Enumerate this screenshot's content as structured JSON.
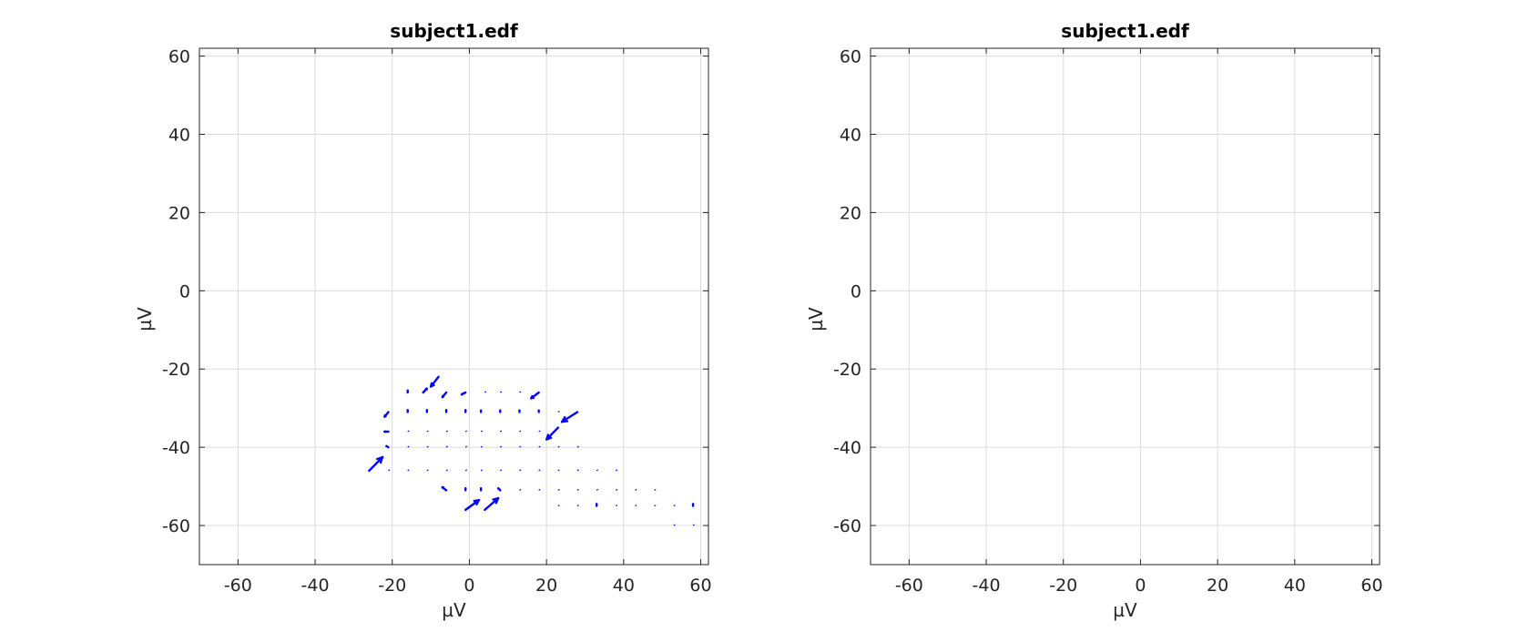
{
  "figure": {
    "background": "#ffffff",
    "axis_color": "#262626",
    "grid_color": "#dcdcdc",
    "arrow_color": "#0000ff"
  },
  "chart_data": [
    {
      "type": "quiver",
      "title": "subject1.edf",
      "xlabel": "µV",
      "ylabel": "µV",
      "xlim": [
        -70,
        62
      ],
      "ylim": [
        -70,
        62
      ],
      "xticks": [
        -60,
        -40,
        -20,
        0,
        20,
        40,
        60
      ],
      "yticks": [
        60,
        40,
        20,
        0,
        -20,
        -40,
        -60
      ],
      "xticklabels": [
        "-60",
        "-40",
        "-20",
        "0",
        "20",
        "40",
        "60"
      ],
      "yticklabels": [
        "60",
        "40",
        "20",
        "0",
        "-20",
        "-40",
        "-60"
      ],
      "grid": true,
      "series": [
        {
          "color": "#0000ff",
          "vectors": [
            [
              -16,
              -26,
              0,
              0.5
            ],
            [
              -12,
              -26,
              1,
              1
            ],
            [
              -8,
              -22,
              -2,
              -2.5
            ],
            [
              -6,
              -26,
              -1,
              -1.2
            ],
            [
              -1,
              -26,
              -1,
              -0.5
            ],
            [
              4,
              -26,
              0,
              0
            ],
            [
              8,
              -26,
              0,
              0
            ],
            [
              13,
              -26,
              0,
              0
            ],
            [
              18,
              -26,
              -2,
              -1.5
            ],
            [
              -21,
              -31,
              -1,
              -1.2
            ],
            [
              -16,
              -31,
              0,
              0.5
            ],
            [
              -11,
              -31,
              0,
              0.5
            ],
            [
              -6,
              -31,
              0,
              0.5
            ],
            [
              -1,
              -31,
              0,
              0.5
            ],
            [
              3,
              -31,
              0,
              0.4
            ],
            [
              8,
              -31,
              0,
              0.4
            ],
            [
              13,
              -31,
              0,
              0.4
            ],
            [
              18,
              -31,
              0,
              0.4
            ],
            [
              23,
              -31,
              0,
              0.3
            ],
            [
              28,
              -31,
              -4,
              -2.5
            ],
            [
              -21,
              -36,
              -1,
              0
            ],
            [
              -16,
              -36,
              0,
              0.3
            ],
            [
              -11,
              -36,
              0,
              0.3
            ],
            [
              -6,
              -36,
              0,
              0.3
            ],
            [
              -1,
              -36,
              0,
              0.3
            ],
            [
              3,
              -36,
              0,
              0.3
            ],
            [
              8,
              -36,
              0,
              0.3
            ],
            [
              13,
              -36,
              0,
              0.3
            ],
            [
              18,
              -36,
              0,
              0.3
            ],
            [
              23,
              -35,
              -3,
              -3
            ],
            [
              -21,
              -40,
              -0.5,
              0.3
            ],
            [
              -16,
              -40,
              0,
              0.3
            ],
            [
              -11,
              -40,
              0,
              0.2
            ],
            [
              -6,
              -40,
              0,
              0.2
            ],
            [
              -1,
              -40,
              0,
              0.2
            ],
            [
              3,
              -40,
              0,
              0.2
            ],
            [
              8,
              -40,
              0,
              0.2
            ],
            [
              13,
              -40,
              0,
              0.2
            ],
            [
              18,
              -40,
              0,
              0.2
            ],
            [
              23,
              -40,
              0,
              0.2
            ],
            [
              28,
              -40,
              0,
              0.2
            ],
            [
              -26,
              -46,
              3.5,
              3.5
            ],
            [
              -21,
              -46,
              0,
              0.3
            ],
            [
              -16,
              -46,
              0,
              0.3
            ],
            [
              -11,
              -46,
              0,
              0.3
            ],
            [
              -6,
              -46,
              0,
              0.2
            ],
            [
              -1,
              -46,
              0,
              0.2
            ],
            [
              3,
              -46,
              0,
              0.2
            ],
            [
              8,
              -46,
              0,
              0.2
            ],
            [
              13,
              -46,
              0,
              0.2
            ],
            [
              18,
              -46,
              0,
              0.2
            ],
            [
              23,
              -46,
              0,
              0.2
            ],
            [
              28,
              -46,
              0,
              0.2
            ],
            [
              33,
              -46,
              0,
              0.2
            ],
            [
              38,
              -46,
              0,
              0.2
            ],
            [
              -6,
              -51,
              -1,
              0.8
            ],
            [
              -1,
              -51,
              0,
              0.5
            ],
            [
              3,
              -51,
              0,
              0.5
            ],
            [
              8,
              -51,
              -0.5,
              0.5
            ],
            [
              13,
              -51,
              0,
              0.3
            ],
            [
              18,
              -51,
              0,
              0.3
            ],
            [
              23,
              -51,
              0,
              0.3
            ],
            [
              28,
              -51,
              0,
              0.3
            ],
            [
              33,
              -51,
              0,
              0.3
            ],
            [
              38,
              -51,
              0,
              0.3
            ],
            [
              43,
              -51,
              0,
              0.3
            ],
            [
              48,
              -51,
              0,
              0.3
            ],
            [
              -1,
              -56,
              3.5,
              2.5
            ],
            [
              4,
              -56,
              3.5,
              3
            ],
            [
              23,
              -55,
              0,
              0.3
            ],
            [
              28,
              -55,
              0,
              0.3
            ],
            [
              33,
              -55,
              0,
              0.5
            ],
            [
              38,
              -55,
              0,
              0.3
            ],
            [
              43,
              -55,
              0,
              0.3
            ],
            [
              48,
              -55,
              0,
              0.3
            ],
            [
              53,
              -55,
              0,
              0.3
            ],
            [
              58,
              -55,
              0,
              0.5
            ],
            [
              53,
              -60,
              0,
              0.3
            ],
            [
              58,
              -60,
              0,
              0.2
            ]
          ]
        }
      ]
    },
    {
      "type": "quiver",
      "title": "subject1.edf",
      "xlabel": "µV",
      "ylabel": "µV",
      "xlim": [
        -70,
        62
      ],
      "ylim": [
        -70,
        62
      ],
      "xticks": [
        -60,
        -40,
        -20,
        0,
        20,
        40,
        60
      ],
      "yticks": [
        60,
        40,
        20,
        0,
        -20,
        -40,
        -60
      ],
      "xticklabels": [
        "-60",
        "-40",
        "-20",
        "0",
        "20",
        "40",
        "60"
      ],
      "yticklabels": [
        "60",
        "40",
        "20",
        "0",
        "-20",
        "-40",
        "-60"
      ],
      "grid": true,
      "series": []
    }
  ]
}
